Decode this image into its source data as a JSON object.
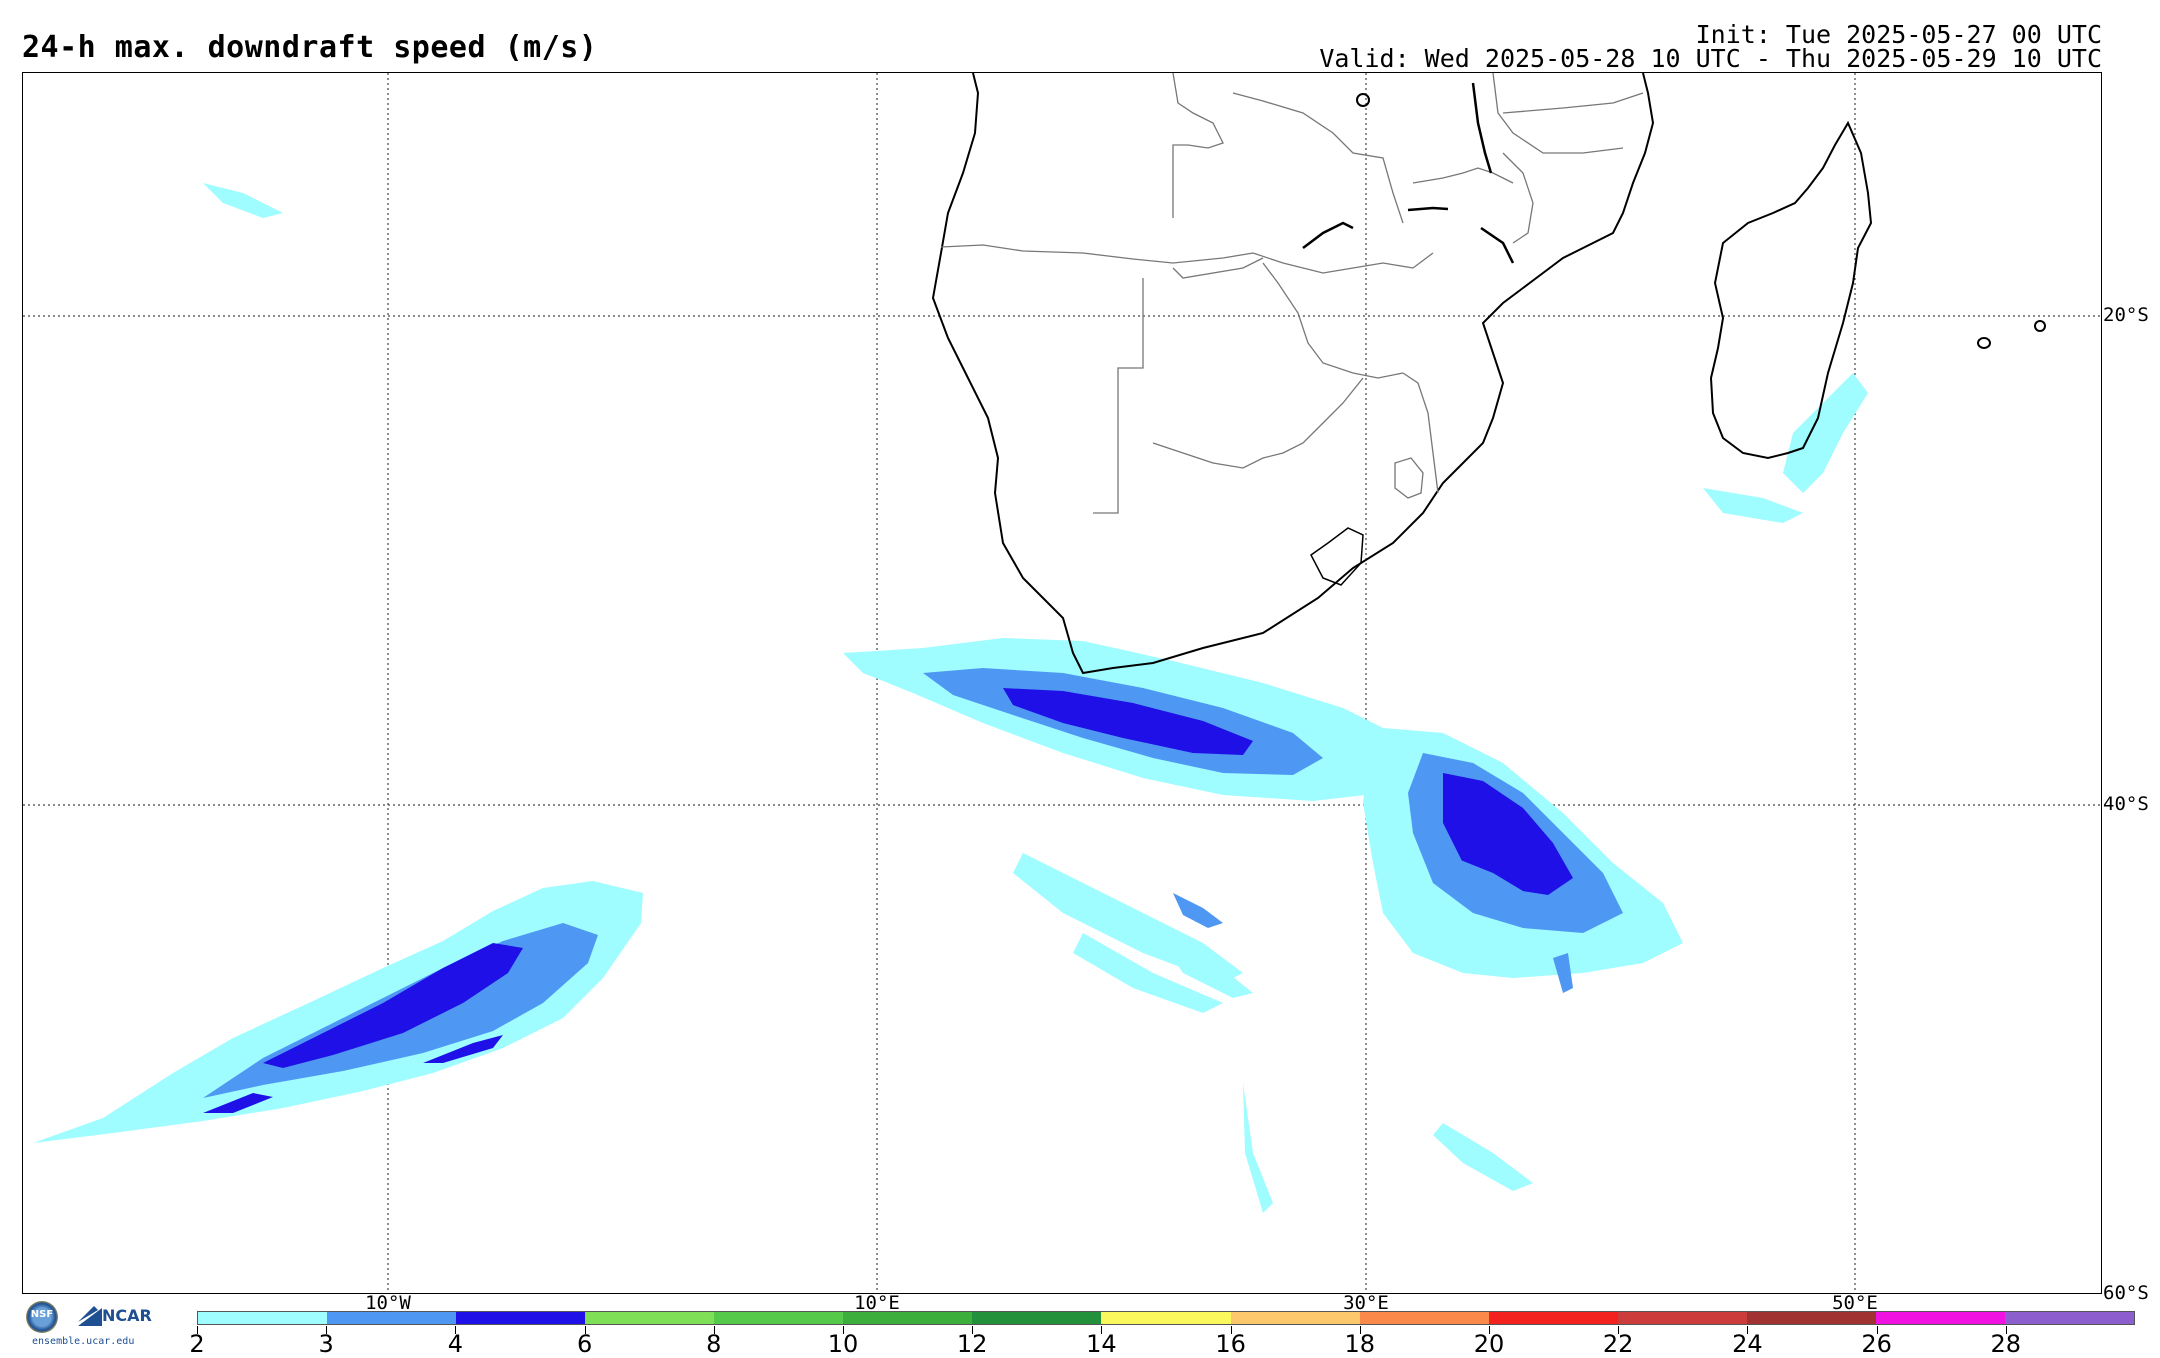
{
  "header": {
    "title": "24-h max. downdraft speed (m/s)",
    "init": "Init: Tue 2025-05-27 00 UTC",
    "valid": "Valid: Wed 2025-05-28 10 UTC - Thu 2025-05-29 10 UTC"
  },
  "map": {
    "projection": "cylindrical",
    "lon_range": [
      -25,
      60
    ],
    "lat_range": [
      -60,
      -10
    ],
    "gridlines": "dotted",
    "lon_labels": [
      "10°W",
      "10°E",
      "30°E",
      "50°E"
    ],
    "lat_labels": [
      "20°S",
      "40°S",
      "60°S"
    ],
    "land_outline_color": "#000000",
    "border_color": "#777777"
  },
  "logos": {
    "nsf": "NSF",
    "ncar": "NCAR",
    "site": "ensemble.ucar.edu"
  },
  "colorbar": {
    "unit": "m/s",
    "labels": [
      "2",
      "3",
      "4",
      "6",
      "8",
      "10",
      "12",
      "14",
      "16",
      "18",
      "20",
      "22",
      "24",
      "26",
      "28"
    ],
    "colors": [
      "#9ffcff",
      "#4e97f3",
      "#1f10e8",
      "#7fdf56",
      "#55c94a",
      "#3cae3c",
      "#23913c",
      "#fbf85e",
      "#fdc86b",
      "#fb8a4a",
      "#f3221f",
      "#cc3c3b",
      "#a03331",
      "#f012e0",
      "#8d5ecd"
    ]
  },
  "fields": [
    {
      "region": "South Atlantic near 5°W 48°S",
      "max_level": "4-6"
    },
    {
      "region": "South of Cape Agulhas 20°E 36°S",
      "max_level": "4-6"
    },
    {
      "region": "Southwest Indian Ocean 35°E 41°S",
      "max_level": "4-6"
    },
    {
      "region": "East of Madagascar",
      "max_level": "2-3"
    }
  ]
}
